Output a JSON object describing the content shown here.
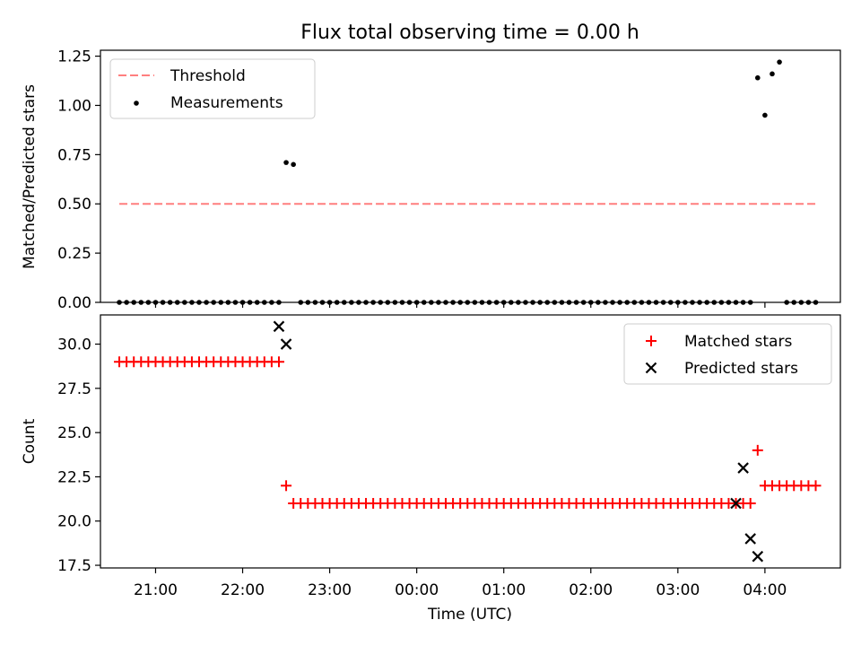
{
  "title": "Flux total observing time = 0.00 h",
  "chart_data": [
    {
      "type": "scatter",
      "ylabel": "Matched/Predicted stars",
      "ylim": [
        0,
        1.28
      ],
      "xlim": [
        "20:22",
        "04:52"
      ],
      "yticks": [
        0.0,
        0.25,
        0.5,
        0.75,
        1.0,
        1.25
      ],
      "ytick_labels": [
        "0.00",
        "0.25",
        "0.50",
        "0.75",
        "1.00",
        "1.25"
      ],
      "legend_position": "top-left",
      "threshold": {
        "name": "Threshold",
        "value": 0.5,
        "x_start": "20:35",
        "x_end": "04:35",
        "color": "#ff7f7f",
        "style": "dashed"
      },
      "measurements": {
        "name": "Measurements",
        "color": "#000000",
        "x": [
          "20:35",
          "20:40",
          "20:45",
          "20:50",
          "20:55",
          "21:00",
          "21:05",
          "21:10",
          "21:15",
          "21:20",
          "21:25",
          "21:30",
          "21:35",
          "21:40",
          "21:45",
          "21:50",
          "21:55",
          "22:00",
          "22:05",
          "22:10",
          "22:15",
          "22:20",
          "22:25",
          "22:30",
          "22:35",
          "22:40",
          "22:45",
          "22:50",
          "22:55",
          "23:00",
          "23:05",
          "23:10",
          "23:15",
          "23:20",
          "23:25",
          "23:30",
          "23:35",
          "23:40",
          "23:45",
          "23:50",
          "23:55",
          "00:00",
          "00:05",
          "00:10",
          "00:15",
          "00:20",
          "00:25",
          "00:30",
          "00:35",
          "00:40",
          "00:45",
          "00:50",
          "00:55",
          "01:00",
          "01:05",
          "01:10",
          "01:15",
          "01:20",
          "01:25",
          "01:30",
          "01:35",
          "01:40",
          "01:45",
          "01:50",
          "01:55",
          "02:00",
          "02:05",
          "02:10",
          "02:15",
          "02:20",
          "02:25",
          "02:30",
          "02:35",
          "02:40",
          "02:45",
          "02:50",
          "02:55",
          "03:00",
          "03:05",
          "03:10",
          "03:15",
          "03:20",
          "03:25",
          "03:30",
          "03:35",
          "03:40",
          "03:45",
          "03:50",
          "03:55",
          "04:00",
          "04:05",
          "04:10",
          "04:15",
          "04:20",
          "04:25",
          "04:30",
          "04:35"
        ],
        "y": [
          0,
          0,
          0,
          0,
          0,
          0,
          0,
          0,
          0,
          0,
          0,
          0,
          0,
          0,
          0,
          0,
          0,
          0,
          0,
          0,
          0,
          0,
          0,
          0.71,
          0.7,
          0,
          0,
          0,
          0,
          0,
          0,
          0,
          0,
          0,
          0,
          0,
          0,
          0,
          0,
          0,
          0,
          0,
          0,
          0,
          0,
          0,
          0,
          0,
          0,
          0,
          0,
          0,
          0,
          0,
          0,
          0,
          0,
          0,
          0,
          0,
          0,
          0,
          0,
          0,
          0,
          0,
          0,
          0,
          0,
          0,
          0,
          0,
          0,
          0,
          0,
          0,
          0,
          0,
          0,
          0,
          0,
          0,
          0,
          0,
          0,
          0,
          0,
          0,
          1.14,
          0.95,
          1.16,
          1.22,
          0,
          0,
          0,
          0,
          0
        ]
      }
    },
    {
      "type": "scatter",
      "xlabel": "Time (UTC)",
      "ylabel": "Count",
      "ylim": [
        17.35,
        31.65
      ],
      "xlim": [
        "20:22",
        "04:52"
      ],
      "yticks": [
        17.5,
        20.0,
        22.5,
        25.0,
        27.5,
        30.0
      ],
      "ytick_labels": [
        "17.5",
        "20.0",
        "22.5",
        "25.0",
        "27.5",
        "30.0"
      ],
      "xticks": [
        "21:00",
        "22:00",
        "23:00",
        "00:00",
        "01:00",
        "02:00",
        "03:00",
        "04:00"
      ],
      "legend_position": "top-right",
      "matched": {
        "name": "Matched stars",
        "color": "#ff0000",
        "x": [
          "20:35",
          "20:40",
          "20:45",
          "20:50",
          "20:55",
          "21:00",
          "21:05",
          "21:10",
          "21:15",
          "21:20",
          "21:25",
          "21:30",
          "21:35",
          "21:40",
          "21:45",
          "21:50",
          "21:55",
          "22:00",
          "22:05",
          "22:10",
          "22:15",
          "22:20",
          "22:25",
          "22:30",
          "22:35",
          "22:40",
          "22:45",
          "22:50",
          "22:55",
          "23:00",
          "23:05",
          "23:10",
          "23:15",
          "23:20",
          "23:25",
          "23:30",
          "23:35",
          "23:40",
          "23:45",
          "23:50",
          "23:55",
          "00:00",
          "00:05",
          "00:10",
          "00:15",
          "00:20",
          "00:25",
          "00:30",
          "00:35",
          "00:40",
          "00:45",
          "00:50",
          "00:55",
          "01:00",
          "01:05",
          "01:10",
          "01:15",
          "01:20",
          "01:25",
          "01:30",
          "01:35",
          "01:40",
          "01:45",
          "01:50",
          "01:55",
          "02:00",
          "02:05",
          "02:10",
          "02:15",
          "02:20",
          "02:25",
          "02:30",
          "02:35",
          "02:40",
          "02:45",
          "02:50",
          "02:55",
          "03:00",
          "03:05",
          "03:10",
          "03:15",
          "03:20",
          "03:25",
          "03:30",
          "03:35",
          "03:40",
          "03:45",
          "03:50",
          "03:55",
          "04:00",
          "04:05",
          "04:10",
          "04:15",
          "04:20",
          "04:25",
          "04:30",
          "04:35"
        ],
        "y": [
          29,
          29,
          29,
          29,
          29,
          29,
          29,
          29,
          29,
          29,
          29,
          29,
          29,
          29,
          29,
          29,
          29,
          29,
          29,
          29,
          29,
          29,
          29,
          22,
          21,
          21,
          21,
          21,
          21,
          21,
          21,
          21,
          21,
          21,
          21,
          21,
          21,
          21,
          21,
          21,
          21,
          21,
          21,
          21,
          21,
          21,
          21,
          21,
          21,
          21,
          21,
          21,
          21,
          21,
          21,
          21,
          21,
          21,
          21,
          21,
          21,
          21,
          21,
          21,
          21,
          21,
          21,
          21,
          21,
          21,
          21,
          21,
          21,
          21,
          21,
          21,
          21,
          21,
          21,
          21,
          21,
          21,
          21,
          21,
          21,
          21,
          21,
          21,
          24,
          22,
          22,
          22,
          22,
          22,
          22,
          22,
          22
        ]
      },
      "predicted": {
        "name": "Predicted stars",
        "color": "#000000",
        "x": [
          "22:25",
          "22:30",
          "03:40",
          "03:45",
          "03:50",
          "03:55"
        ],
        "y": [
          31,
          30,
          21,
          23,
          19,
          18
        ]
      }
    }
  ]
}
